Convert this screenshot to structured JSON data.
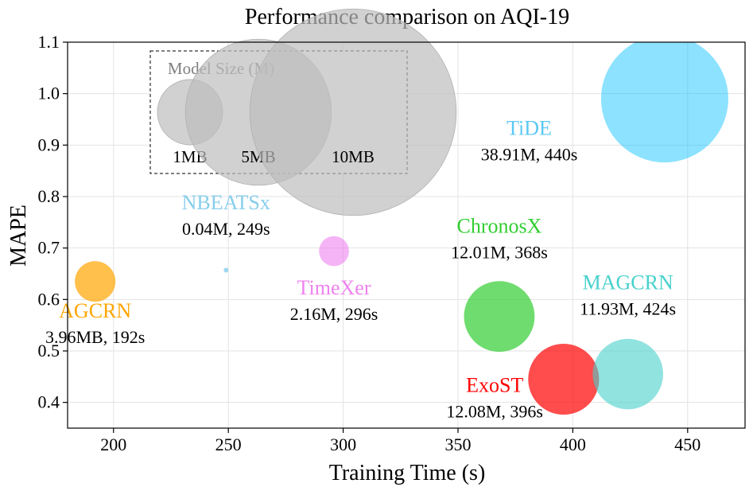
{
  "chart_data": {
    "type": "scatter",
    "title": "Performance comparison on AQI-19",
    "xlabel": "Training Time (s)",
    "ylabel": "MAPE",
    "xlim": [
      180,
      475
    ],
    "ylim": [
      0.35,
      1.1
    ],
    "xticks": [
      200,
      250,
      300,
      350,
      400,
      450
    ],
    "yticks": [
      0.4,
      0.5,
      0.6,
      0.7,
      0.8,
      0.9,
      1.0,
      1.1
    ],
    "xtick_labels": [
      "200",
      "250",
      "300",
      "350",
      "400",
      "450"
    ],
    "ytick_labels": [
      "0.4",
      "0.5",
      "0.6",
      "0.7",
      "0.8",
      "0.9",
      "1.0",
      "1.1"
    ],
    "grid": true,
    "points": [
      {
        "name": "AGCRN",
        "label": "3.96MB, 192s",
        "x": 192,
        "y": 0.635,
        "size_m": 3.96,
        "color": "#FFA500",
        "opacity": 0.7,
        "label_x": 192,
        "label_y": 0.565,
        "name_color": "#FFA500",
        "label_pos": "below"
      },
      {
        "name": "NBEATSx",
        "label": "0.04M, 249s",
        "x": 249,
        "y": 0.657,
        "size_m": 0.04,
        "color": "#87CEEB",
        "opacity": 0.8,
        "label_x": 249,
        "label_y": 0.775,
        "name_color": "#87CEEB",
        "label_pos": "above"
      },
      {
        "name": "TimeXer",
        "label": "2.16M, 296s",
        "x": 296,
        "y": 0.694,
        "size_m": 2.16,
        "color": "#EE82EE",
        "opacity": 0.6,
        "label_x": 296,
        "label_y": 0.61,
        "name_color": "#EE82EE",
        "label_pos": "below"
      },
      {
        "name": "ChronosX",
        "label": "12.01M, 368s",
        "x": 368,
        "y": 0.567,
        "size_m": 12.01,
        "color": "#32CD32",
        "opacity": 0.7,
        "label_x": 368,
        "label_y": 0.73,
        "name_color": "#32CD32",
        "label_pos": "above"
      },
      {
        "name": "ExoST",
        "label": "12.08M, 396s",
        "x": 396,
        "y": 0.445,
        "size_m": 12.08,
        "color": "#FF0000",
        "opacity": 0.7,
        "label_x": 366,
        "label_y": 0.42,
        "name_color": "#FF0000",
        "label_pos": "left"
      },
      {
        "name": "MAGCRN",
        "label": "11.93M, 424s",
        "x": 424,
        "y": 0.455,
        "size_m": 11.93,
        "color": "#48D1CC",
        "opacity": 0.6,
        "label_x": 424,
        "label_y": 0.62,
        "name_color": "#48D1CC",
        "label_pos": "above"
      },
      {
        "name": "TiDE",
        "label": "38.91M, 440s",
        "x": 440,
        "y": 0.99,
        "size_m": 38.91,
        "color": "#00BFFF",
        "opacity": 0.45,
        "label_x": 381,
        "label_y": 0.92,
        "name_color": "#5BC8F5",
        "label_pos": "left"
      }
    ],
    "size_legend": {
      "title": "Model Size (M)",
      "entries": [
        {
          "label": "1MB",
          "size_m": 1
        },
        {
          "label": "5MB",
          "size_m": 5
        },
        {
          "label": "10MB",
          "size_m": 10
        }
      ],
      "placement": "top-left",
      "color": "#BEBEBE"
    }
  }
}
